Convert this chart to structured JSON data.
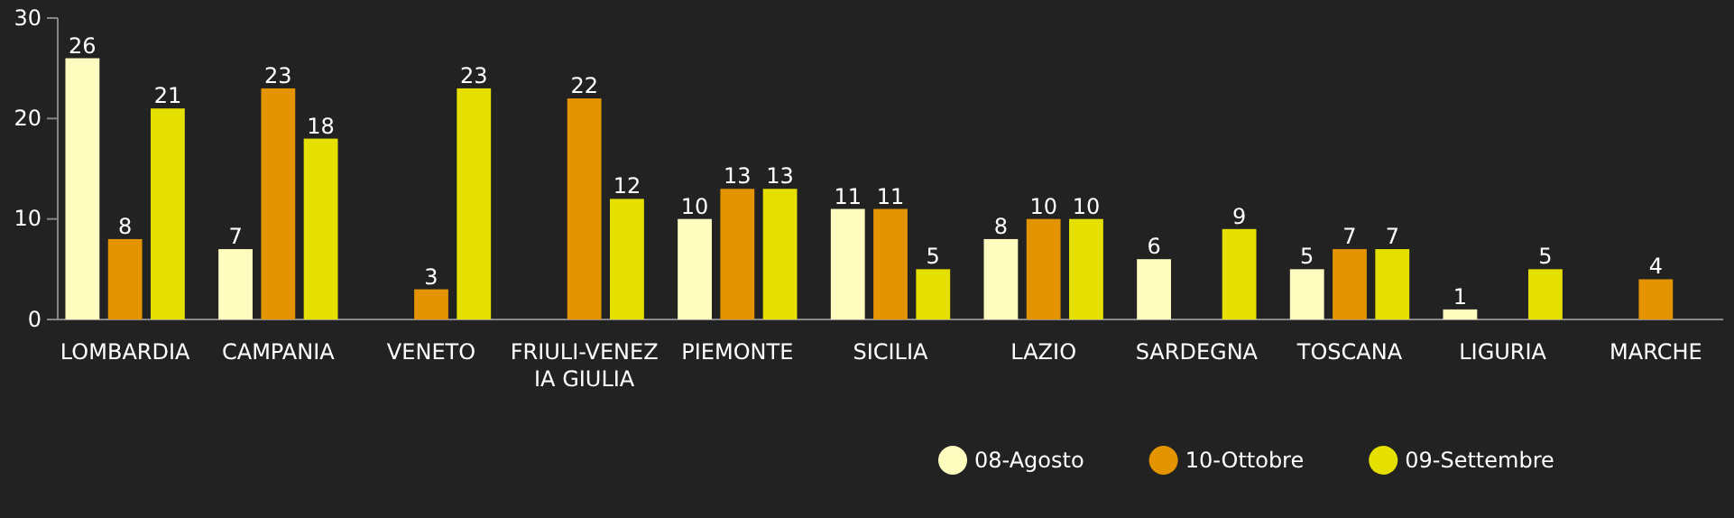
{
  "chart_data": {
    "type": "bar",
    "categories": [
      "LOMBARDIA",
      "CAMPANIA",
      "VENETO",
      "FRIULI-VENEZIA GIULIA",
      "PIEMONTE",
      "SICILIA",
      "LAZIO",
      "SARDEGNA",
      "TOSCANA",
      "LIGURIA",
      "MARCHE"
    ],
    "series": [
      {
        "name": "08-Agosto",
        "color": "#fffcc0",
        "values": [
          26,
          7,
          null,
          null,
          10,
          11,
          8,
          6,
          5,
          1,
          null
        ]
      },
      {
        "name": "10-Ottobre",
        "color": "#e39400",
        "values": [
          8,
          23,
          3,
          22,
          13,
          11,
          10,
          null,
          7,
          null,
          4
        ]
      },
      {
        "name": "09-Settembre",
        "color": "#e5e000",
        "values": [
          21,
          18,
          23,
          12,
          13,
          5,
          10,
          9,
          7,
          5,
          null
        ]
      }
    ],
    "ylim": [
      0,
      30
    ],
    "yticks": [
      0,
      10,
      20,
      30
    ],
    "grid": false,
    "legend": "bottom",
    "data_labels": true
  }
}
